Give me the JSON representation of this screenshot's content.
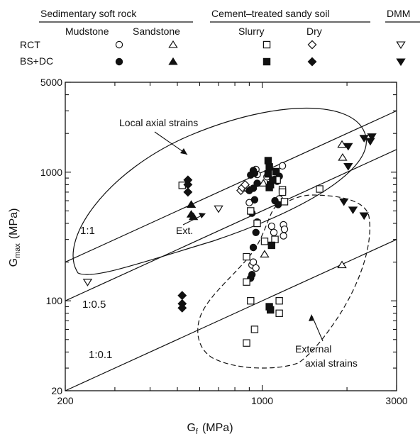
{
  "legend": {
    "groups": [
      {
        "label": "Sedimentary soft rock"
      },
      {
        "label": "Cement–treated sandy soil"
      },
      {
        "label": "DMM"
      }
    ],
    "subgroups": [
      "Mudstone",
      "Sandstone",
      "Slurry",
      "Dry"
    ],
    "rows": [
      "RCT",
      "BS+DC"
    ]
  },
  "chart_data": {
    "type": "scatter",
    "xlabel": "G",
    "xlabel_sub": "f",
    "xlabel_unit": "(MPa)",
    "ylabel": "G",
    "ylabel_sub": "max",
    "ylabel_unit": "(MPa)",
    "xscale": "log",
    "yscale": "log",
    "xlim": [
      200,
      3000
    ],
    "ylim": [
      20,
      5000
    ],
    "xticks": [
      200,
      1000,
      3000
    ],
    "yticks": [
      20,
      100,
      1000,
      5000
    ],
    "xtick_labels": [
      "200",
      "1000",
      "3000"
    ],
    "ytick_labels": [
      "20",
      "100",
      "1000",
      "5000"
    ],
    "grid": false,
    "legend_position": "top",
    "reference_lines": [
      {
        "label": "1:1",
        "ratio": 1.0
      },
      {
        "label": "1:0.5",
        "ratio": 0.5
      },
      {
        "label": "1:0.1",
        "ratio": 0.1
      }
    ],
    "annotations": [
      {
        "text": "Local axial strains"
      },
      {
        "text": "Ext."
      },
      {
        "text": "External"
      },
      {
        "text": "axial strains"
      }
    ],
    "series": [
      {
        "group": "Mudstone",
        "test": "RCT",
        "marker": "circle-open",
        "points": [
          [
            880,
            750
          ],
          [
            900,
            580
          ],
          [
            950,
            1050
          ],
          [
            960,
            960
          ],
          [
            1040,
            920
          ],
          [
            1080,
            380
          ],
          [
            1100,
            340
          ],
          [
            1110,
            880
          ],
          [
            1150,
            620
          ],
          [
            1180,
            1120
          ],
          [
            1190,
            390
          ],
          [
            1200,
            360
          ],
          [
            1190,
            320
          ],
          [
            920,
            190
          ],
          [
            930,
            200
          ],
          [
            950,
            180
          ]
        ]
      },
      {
        "group": "Mudstone",
        "test": "BS+DC",
        "marker": "circle-filled",
        "points": [
          [
            930,
            1030
          ],
          [
            940,
            980
          ],
          [
            910,
            950
          ],
          [
            960,
            820
          ],
          [
            930,
            750
          ],
          [
            900,
            720
          ],
          [
            940,
            610
          ],
          [
            920,
            480
          ],
          [
            960,
            410
          ],
          [
            950,
            340
          ],
          [
            930,
            260
          ],
          [
            920,
            160
          ],
          [
            910,
            150
          ],
          [
            1110,
            600
          ],
          [
            1150,
            930
          ],
          [
            1130,
            850
          ],
          [
            1140,
            560
          ]
        ]
      },
      {
        "group": "Sandstone",
        "test": "RCT",
        "marker": "triangle-open",
        "points": [
          [
            1010,
            820
          ],
          [
            1020,
            230
          ],
          [
            1920,
            1640
          ],
          [
            1930,
            1300
          ],
          [
            1920,
            190
          ]
        ]
      },
      {
        "group": "Sandstone",
        "test": "BS+DC",
        "marker": "triangle-filled",
        "points": [
          [
            560,
            560
          ],
          [
            560,
            470
          ],
          [
            570,
            450
          ]
        ]
      },
      {
        "group": "Slurry",
        "test": "RCT",
        "marker": "square-open",
        "points": [
          [
            520,
            790
          ],
          [
            910,
            500
          ],
          [
            960,
            400
          ],
          [
            880,
            220
          ],
          [
            880,
            140
          ],
          [
            910,
            100
          ],
          [
            940,
            60
          ],
          [
            880,
            47
          ],
          [
            1150,
            100
          ],
          [
            1150,
            80
          ],
          [
            1180,
            730
          ],
          [
            1180,
            700
          ],
          [
            1200,
            590
          ],
          [
            1110,
            300
          ],
          [
            1600,
            740
          ],
          [
            1020,
            290
          ],
          [
            1130,
            870
          ]
        ]
      },
      {
        "group": "Slurry",
        "test": "BS+DC",
        "marker": "square-filled",
        "points": [
          [
            1050,
            1230
          ],
          [
            1060,
            1100
          ],
          [
            1050,
            970
          ],
          [
            1070,
            800
          ],
          [
            1060,
            760
          ],
          [
            1090,
            870
          ],
          [
            1080,
            270
          ],
          [
            1060,
            90
          ],
          [
            1070,
            85
          ],
          [
            1120,
            1010
          ]
        ]
      },
      {
        "group": "Dry",
        "test": "RCT",
        "marker": "diamond-open",
        "points": [
          [
            840,
            720
          ],
          [
            850,
            760
          ],
          [
            870,
            800
          ]
        ]
      },
      {
        "group": "Dry",
        "test": "BS+DC",
        "marker": "diamond-filled",
        "points": [
          [
            545,
            870
          ],
          [
            545,
            800
          ],
          [
            545,
            700
          ],
          [
            520,
            110
          ],
          [
            520,
            95
          ],
          [
            520,
            88
          ]
        ]
      },
      {
        "group": "DMM",
        "test": "RCT",
        "marker": "triangle-down-open",
        "points": [
          [
            240,
            140
          ],
          [
            700,
            520
          ]
        ]
      },
      {
        "group": "DMM",
        "test": "BS+DC",
        "marker": "triangle-down-filled",
        "points": [
          [
            2300,
            1840
          ],
          [
            2450,
            1890
          ],
          [
            2020,
            1590
          ],
          [
            2020,
            1110
          ],
          [
            2420,
            1740
          ],
          [
            1950,
            590
          ],
          [
            2100,
            510
          ],
          [
            2300,
            460
          ]
        ]
      }
    ]
  }
}
